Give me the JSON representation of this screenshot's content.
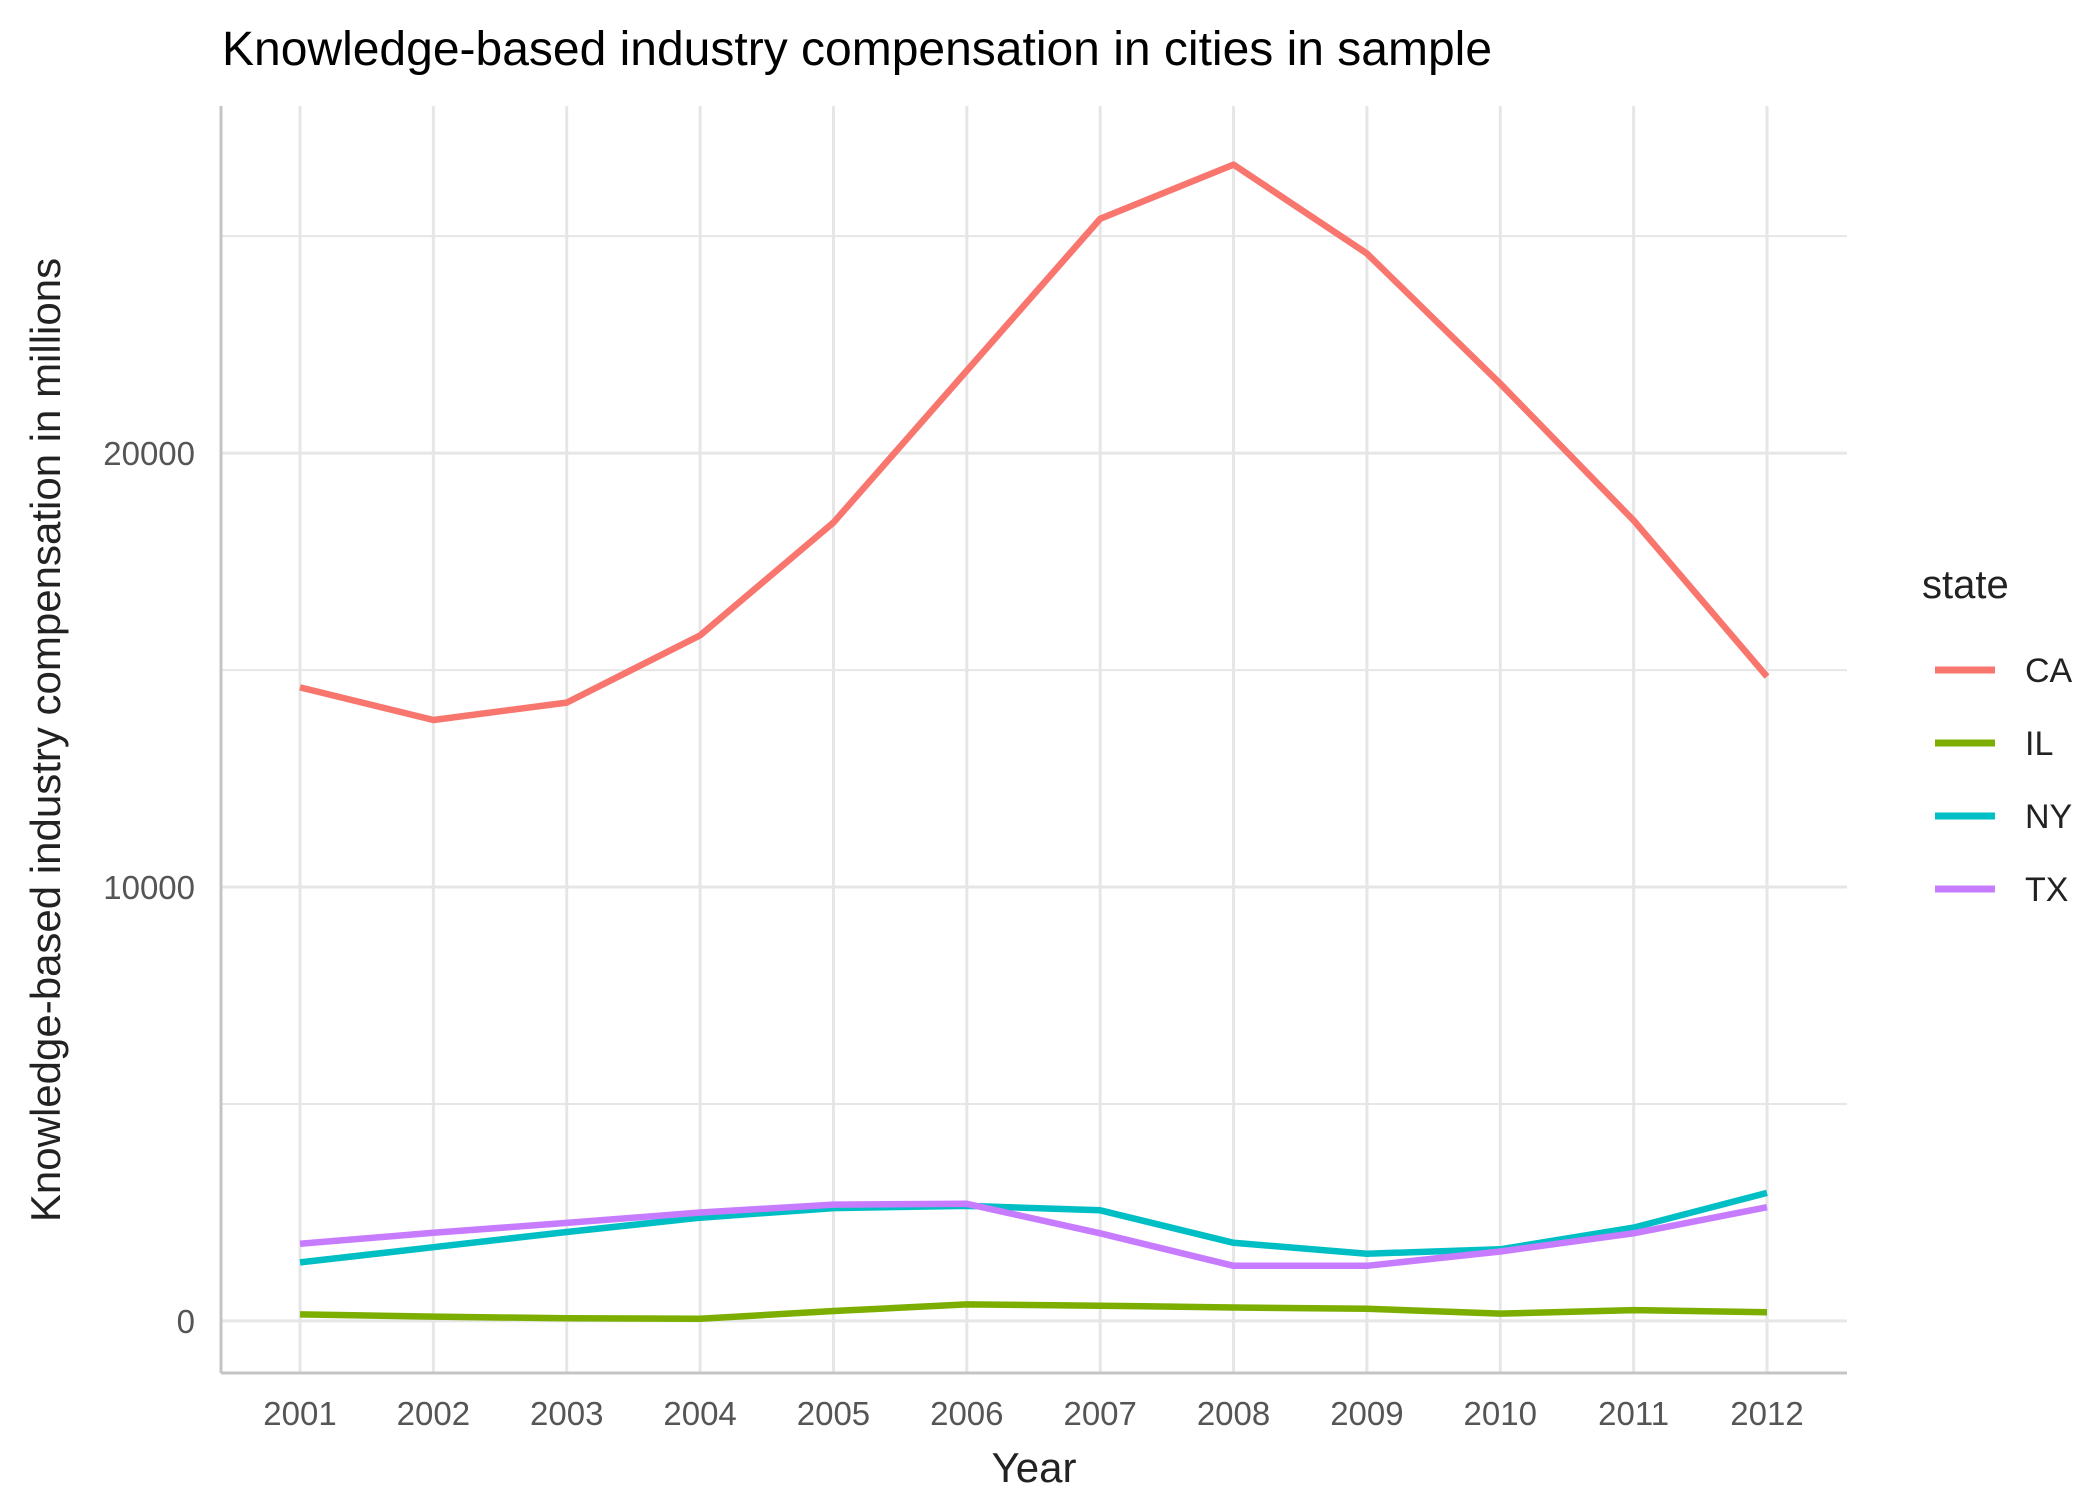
{
  "chart_data": {
    "type": "line",
    "title": "Knowledge-based industry compensation in cities in sample",
    "xlabel": "Year",
    "ylabel": "Knowledge-based industry compensation in millions",
    "x": [
      2001,
      2002,
      2003,
      2004,
      2005,
      2006,
      2007,
      2008,
      2009,
      2010,
      2011,
      2012
    ],
    "x_tick_labels": [
      "2001",
      "2002",
      "2003",
      "2004",
      "2005",
      "2006",
      "2007",
      "2008",
      "2009",
      "2010",
      "2011",
      "2012"
    ],
    "y_ticks": [
      0,
      10000,
      20000
    ],
    "y_tick_labels": [
      "0",
      "10000",
      "20000"
    ],
    "ylim": [
      -1200,
      28000
    ],
    "grid": true,
    "legend": {
      "title": "state",
      "position": "right"
    },
    "series": [
      {
        "name": "CA",
        "color": "#F8766D",
        "values": [
          14600,
          13850,
          14250,
          15800,
          18400,
          21900,
          25400,
          26650,
          24600,
          21600,
          18450,
          14850
        ]
      },
      {
        "name": "IL",
        "color": "#7CAE00",
        "values": [
          150,
          100,
          60,
          50,
          230,
          380,
          350,
          310,
          280,
          170,
          250,
          200
        ]
      },
      {
        "name": "NY",
        "color": "#00BFC4",
        "values": [
          1350,
          1700,
          2050,
          2380,
          2600,
          2650,
          2550,
          1800,
          1550,
          1650,
          2150,
          2950
        ]
      },
      {
        "name": "TX",
        "color": "#C77CFF",
        "values": [
          1780,
          2030,
          2260,
          2500,
          2680,
          2700,
          2020,
          1270,
          1270,
          1600,
          2020,
          2620
        ]
      }
    ]
  }
}
